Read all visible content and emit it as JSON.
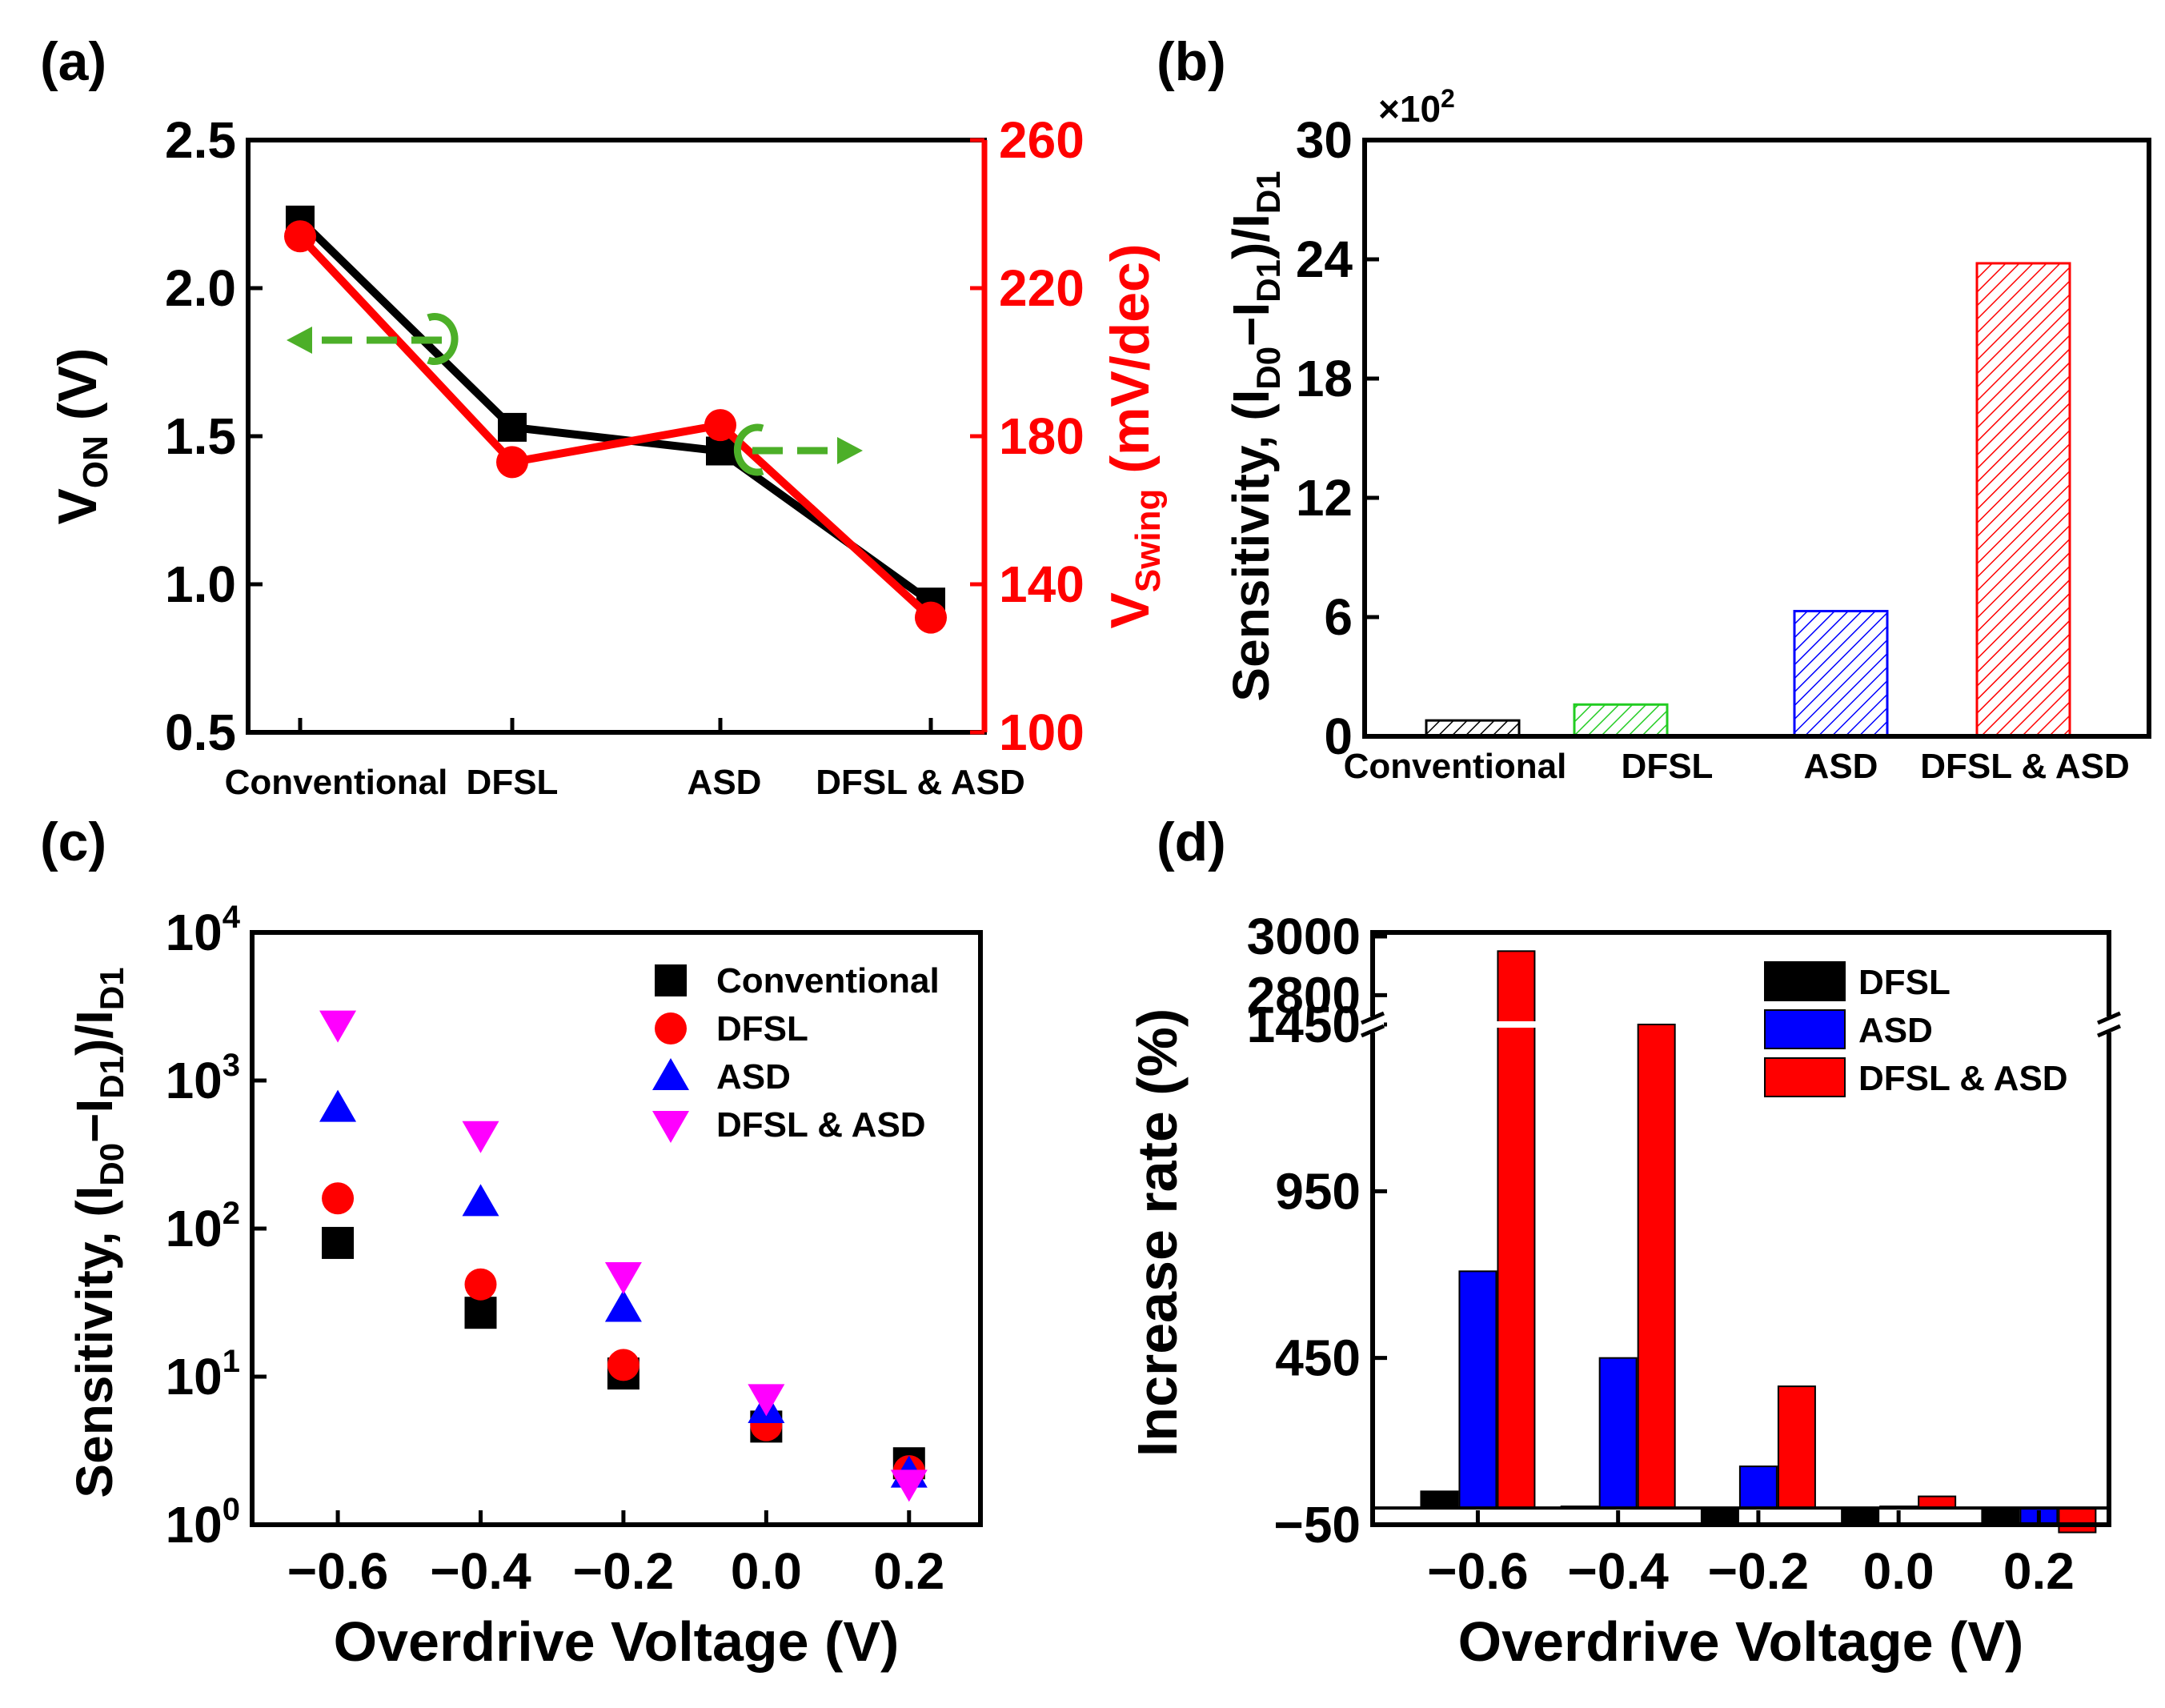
{
  "figure": {
    "panels": [
      "(a)",
      "(b)",
      "(c)",
      "(d)"
    ]
  },
  "chart_data": [
    {
      "id": "a",
      "type": "line",
      "panel_label": "(a)",
      "categories": [
        "Conventional",
        "DFSL",
        "ASD",
        "DFSL & ASD"
      ],
      "series": [
        {
          "name": "VON",
          "axis": "left",
          "color": "#000000",
          "marker": "square",
          "values": [
            2.23,
            1.53,
            1.45,
            0.94
          ]
        },
        {
          "name": "VSwing",
          "axis": "right",
          "color": "#ff0000",
          "marker": "circle",
          "values": [
            234,
            173,
            183,
            131
          ]
        }
      ],
      "ylabel_left": {
        "main": "V",
        "sub": "ON",
        "rest": " (V)"
      },
      "ylabel_right": {
        "main": "V",
        "sub": "Swing",
        "rest": " (mV/dec)"
      },
      "ylim_left": [
        0.5,
        2.5
      ],
      "yticks_left": [
        "0.5",
        "1.0",
        "1.5",
        "2.0",
        "2.5"
      ],
      "ylim_right": [
        100,
        260
      ],
      "yticks_right": [
        "100",
        "140",
        "180",
        "220",
        "260"
      ],
      "right_axis_color": "#ff0000",
      "annotation_color": "#4caf28"
    },
    {
      "id": "b",
      "type": "bar",
      "panel_label": "(b)",
      "categories": [
        "Conventional",
        "DFSL",
        "ASD",
        "DFSL & ASD"
      ],
      "values": [
        0.8,
        1.6,
        6.3,
        23.8
      ],
      "colors": [
        "#000000",
        "#22cc22",
        "#0000ff",
        "#ff0000"
      ],
      "multiplier": "×10",
      "multiplier_exp": "2",
      "ylim": [
        0,
        30
      ],
      "yticks": [
        "0",
        "6",
        "12",
        "18",
        "24",
        "30"
      ],
      "ylabel": {
        "a": "Sensitivity, (I",
        "b": "D0",
        "c": "−I",
        "d": "D1",
        "e": ")/I",
        "f": "D1"
      },
      "fill": "hatched"
    },
    {
      "id": "c",
      "type": "scatter",
      "panel_label": "(c)",
      "scale": "log",
      "x": [
        -0.6,
        -0.4,
        -0.2,
        0.0,
        0.2
      ],
      "series": [
        {
          "name": "Conventional",
          "marker": "square",
          "color": "#000000",
          "values": [
            80,
            27,
            10.5,
            4.6,
            2.6
          ]
        },
        {
          "name": "DFSL",
          "marker": "circle",
          "color": "#ff0000",
          "values": [
            160,
            42,
            12,
            4.7,
            2.3
          ]
        },
        {
          "name": "ASD",
          "marker": "triangle-up",
          "color": "#0000ff",
          "values": [
            650,
            150,
            29,
            6.0,
            2.2
          ]
        },
        {
          "name": "DFSL & ASD",
          "marker": "triangle-down",
          "color": "#ff00ff",
          "values": [
            2400,
            430,
            48,
            7.2,
            1.9
          ]
        }
      ],
      "xlim": [
        -0.72,
        0.3
      ],
      "xticks": [
        "−0.6",
        "−0.4",
        "−0.2",
        "0.0",
        "0.2"
      ],
      "ylim": [
        1,
        10000
      ],
      "yticks": [
        {
          "base": "10",
          "exp": "0"
        },
        {
          "base": "10",
          "exp": "1"
        },
        {
          "base": "10",
          "exp": "2"
        },
        {
          "base": "10",
          "exp": "3"
        },
        {
          "base": "10",
          "exp": "4"
        }
      ],
      "xlabel": "Overdrive Voltage (V)",
      "ylabel": {
        "a": "Sensitivity, (I",
        "b": "D0",
        "c": "−I",
        "d": "D1",
        "e": ")/I",
        "f": "D1"
      },
      "legend": "top-right"
    },
    {
      "id": "d",
      "type": "bar",
      "panel_label": "(d)",
      "x": [
        -0.6,
        -0.4,
        -0.2,
        0.0,
        0.2
      ],
      "series": [
        {
          "name": "DFSL",
          "color": "#000000",
          "values": [
            50,
            5,
            -45,
            -50,
            -50
          ]
        },
        {
          "name": "ASD",
          "color": "#0000ff",
          "values": [
            710,
            450,
            125,
            5,
            -45
          ]
        },
        {
          "name": "DFSL & ASD",
          "color": "#ff0000",
          "values": [
            2950,
            1450,
            365,
            35,
            -73
          ]
        }
      ],
      "xlim": [
        -0.75,
        0.3
      ],
      "xticks": [
        "−0.6",
        "−0.4",
        "−0.2",
        "0.0",
        "0.2"
      ],
      "ylim_lower": [
        -50,
        1450
      ],
      "yticks_lower": [
        "−50",
        "450",
        "950",
        "1450"
      ],
      "ylim_upper": [
        2700,
        3000
      ],
      "yticks_upper": [
        "2800",
        "3000"
      ],
      "axis_break": true,
      "xlabel": "Overdrive Voltage (V)",
      "ylabel": "Increase rate (%)",
      "legend": "top-right"
    }
  ]
}
